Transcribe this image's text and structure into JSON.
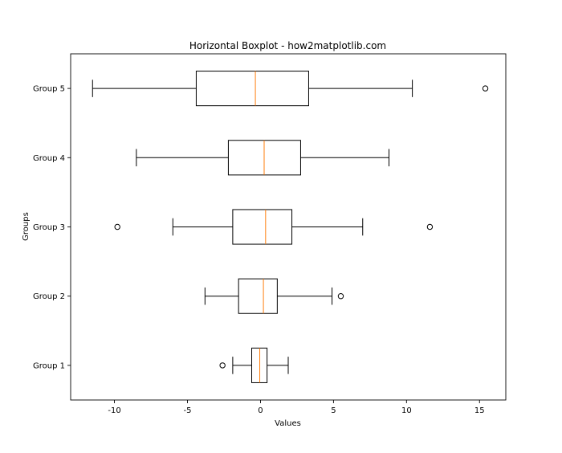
{
  "chart_data": {
    "type": "boxplot",
    "orientation": "horizontal",
    "title": "Horizontal Boxplot - how2matplotlib.com",
    "xlabel": "Values",
    "ylabel": "Groups",
    "xlim": [
      -13.0,
      16.8
    ],
    "xticks": [
      -10,
      -5,
      0,
      5,
      10,
      15
    ],
    "xtick_labels": [
      "-10",
      "-5",
      "0",
      "5",
      "10",
      "15"
    ],
    "grid": false,
    "colors": {
      "box": "#000000",
      "median": "#ff7f0e",
      "flier": "#000000"
    },
    "groups": [
      {
        "label": "Group 1",
        "whisker_low": -1.9,
        "q1": -0.6,
        "median": -0.05,
        "q3": 0.45,
        "whisker_high": 1.9,
        "fliers": [
          -2.6
        ]
      },
      {
        "label": "Group 2",
        "whisker_low": -3.8,
        "q1": -1.5,
        "median": 0.2,
        "q3": 1.15,
        "whisker_high": 4.9,
        "fliers": [
          5.5
        ]
      },
      {
        "label": "Group 3",
        "whisker_low": -6.0,
        "q1": -1.9,
        "median": 0.35,
        "q3": 2.15,
        "whisker_high": 7.0,
        "fliers": [
          -9.8,
          11.6
        ]
      },
      {
        "label": "Group 4",
        "whisker_low": -8.5,
        "q1": -2.2,
        "median": 0.25,
        "q3": 2.75,
        "whisker_high": 8.8,
        "fliers": []
      },
      {
        "label": "Group 5",
        "whisker_low": -11.5,
        "q1": -4.4,
        "median": -0.35,
        "q3": 3.3,
        "whisker_high": 10.4,
        "fliers": [
          15.4
        ]
      }
    ]
  }
}
